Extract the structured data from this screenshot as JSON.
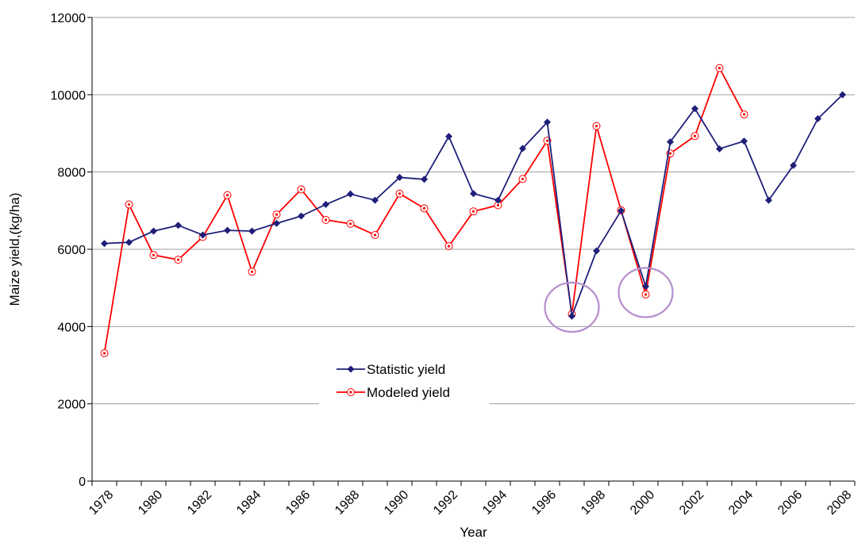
{
  "chart_data": {
    "type": "line",
    "title": "",
    "xlabel": "Year",
    "ylabel": "Maize yield,(kg/ha)",
    "x": [
      1978,
      1979,
      1980,
      1981,
      1982,
      1983,
      1984,
      1985,
      1986,
      1987,
      1988,
      1989,
      1990,
      1991,
      1992,
      1993,
      1994,
      1995,
      1996,
      1997,
      1998,
      1999,
      2000,
      2001,
      2002,
      2003,
      2004,
      2005,
      2006,
      2007,
      2008
    ],
    "xticks": [
      "1978",
      "1980",
      "1982",
      "1984",
      "1986",
      "1988",
      "1990",
      "1992",
      "1994",
      "1996",
      "1998",
      "2000",
      "2002",
      "2004",
      "2006",
      "2008"
    ],
    "ylim": [
      0,
      12000
    ],
    "yticks": [
      "0",
      "2000",
      "4000",
      "6000",
      "8000",
      "10000",
      "12000"
    ],
    "grid": "horizontal",
    "legend_position": "lower-center",
    "series": [
      {
        "name": "Statistic yield",
        "color": "#1f1f7a",
        "marker": "diamond",
        "values": [
          6150,
          6180,
          6470,
          6620,
          6370,
          6490,
          6470,
          6670,
          6860,
          7160,
          7430,
          7270,
          7860,
          7810,
          8920,
          7440,
          7270,
          8610,
          9290,
          4270,
          5960,
          7000,
          5040,
          8780,
          9640,
          8600,
          8800,
          7270,
          8170,
          9380,
          10000
        ]
      },
      {
        "name": "Modeled yield",
        "color": "#ff0000",
        "marker": "open-circle",
        "values": [
          3310,
          7160,
          5850,
          5730,
          6320,
          7400,
          5420,
          6900,
          7550,
          6760,
          6660,
          6370,
          7440,
          7060,
          6080,
          6980,
          7140,
          7820,
          8810,
          4320,
          9190,
          7010,
          4830,
          8480,
          8930,
          10690,
          9490,
          null,
          null,
          null,
          null
        ]
      }
    ],
    "annotations": [
      {
        "type": "ellipse",
        "x": 1997,
        "y": 4500,
        "color": "#b48fcc"
      },
      {
        "type": "ellipse",
        "x": 2000,
        "y": 4880,
        "color": "#b48fcc"
      }
    ]
  }
}
